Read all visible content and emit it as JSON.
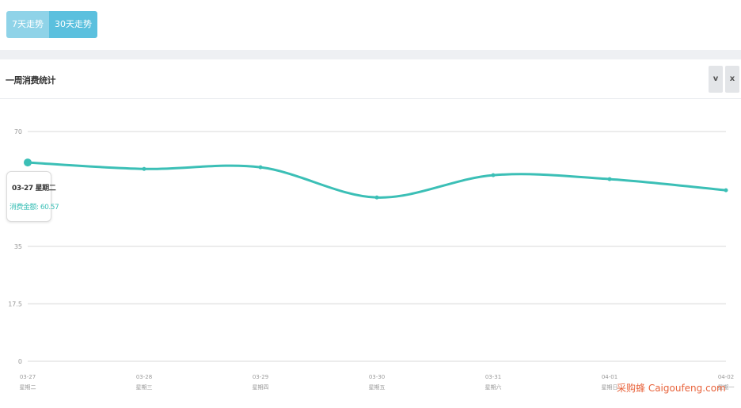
{
  "tabs": [
    {
      "label": "7天走势",
      "active": false
    },
    {
      "label": "30天走势",
      "active": true
    }
  ],
  "panel": {
    "title": "一周消费统计",
    "collapse_label": "v",
    "close_label": "x"
  },
  "tooltip": {
    "date": "03-27 星期二",
    "series_label": "消费金额",
    "value": "60.57"
  },
  "colors": {
    "line": "#3bbfb6",
    "tab_active": "#5bc0de",
    "tab_inactive": "#8fd3e8"
  },
  "chart_data": {
    "type": "line",
    "categories": [
      {
        "date": "03-27",
        "weekday": "星期二"
      },
      {
        "date": "03-28",
        "weekday": "星期三"
      },
      {
        "date": "03-29",
        "weekday": "星期四"
      },
      {
        "date": "03-30",
        "weekday": "星期五"
      },
      {
        "date": "03-31",
        "weekday": "星期六"
      },
      {
        "date": "04-01",
        "weekday": "星期日"
      },
      {
        "date": "04-02",
        "weekday": "星期一"
      }
    ],
    "series": [
      {
        "name": "消费金额",
        "values": [
          60.57,
          58.6,
          59.1,
          49.9,
          56.7,
          55.5,
          52.1
        ]
      }
    ],
    "y_ticks": [
      0,
      17.5,
      35,
      70
    ],
    "y_tick_labels": [
      "0",
      "17.5",
      "35",
      "70"
    ],
    "ylim": [
      0,
      70
    ],
    "grid": true
  },
  "watermark": "采购蜂 Caigoufeng.com"
}
